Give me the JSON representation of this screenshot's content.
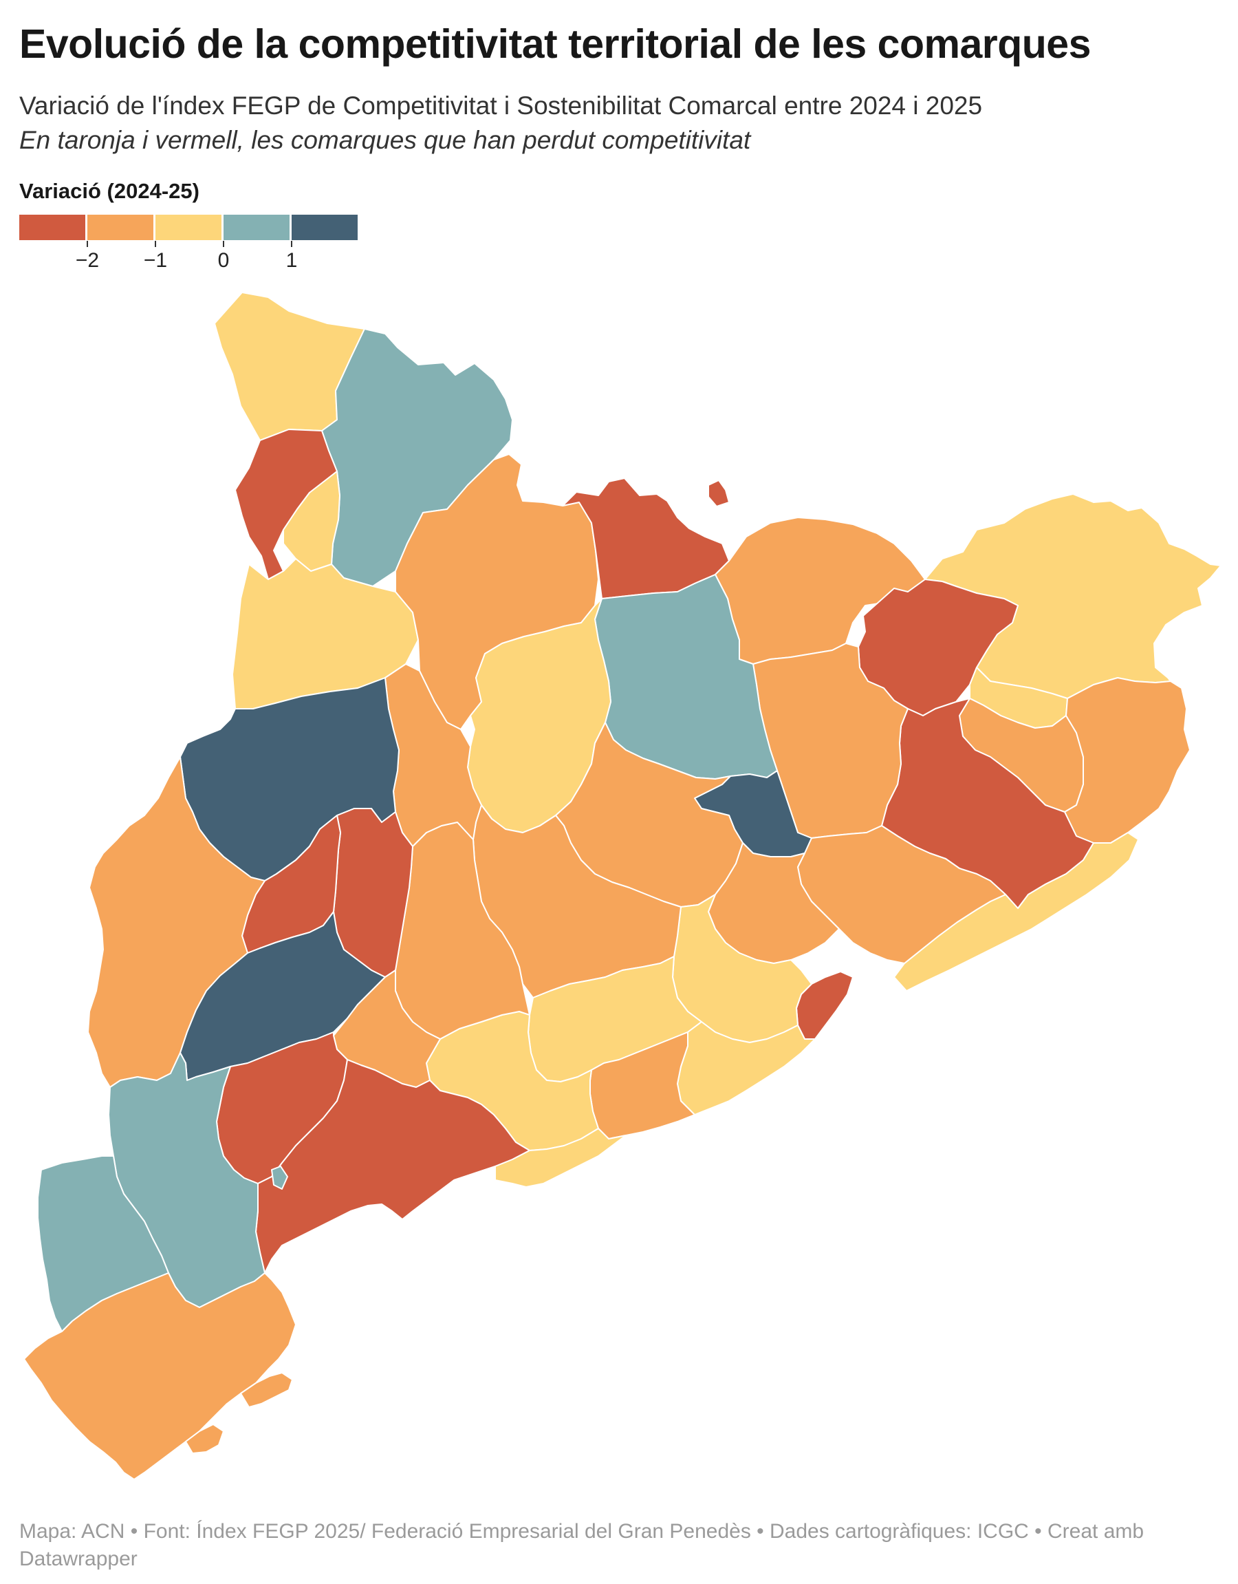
{
  "header": {
    "title": "Evolució de la competitivitat territorial de les comarques",
    "subtitle": "Variació de l'índex FEGP de Competitivitat i Sostenibilitat Comarcal entre 2024 i 2025",
    "note": "En taronja i vermell, les comarques que han perdut competitivitat"
  },
  "legend": {
    "title": "Variació (2024-25)",
    "colors": [
      "#d05a3f",
      "#f6a55a",
      "#fdd67a",
      "#84b1b3",
      "#446175"
    ],
    "ticks": [
      "−2",
      "−1",
      "0",
      "1"
    ]
  },
  "colors": {
    "red": "#d05a3f",
    "orange": "#f6a55a",
    "yellow": "#fdd67a",
    "teal": "#84b1b3",
    "navy": "#446175",
    "border": "#ffffff"
  },
  "footer": {
    "text": "Mapa: ACN • Font: Índex FEGP 2025/ Federació Empresarial del Gran Penedès • Dades cartogràfiques: ICGC • Creat amb Datawrapper"
  }
}
